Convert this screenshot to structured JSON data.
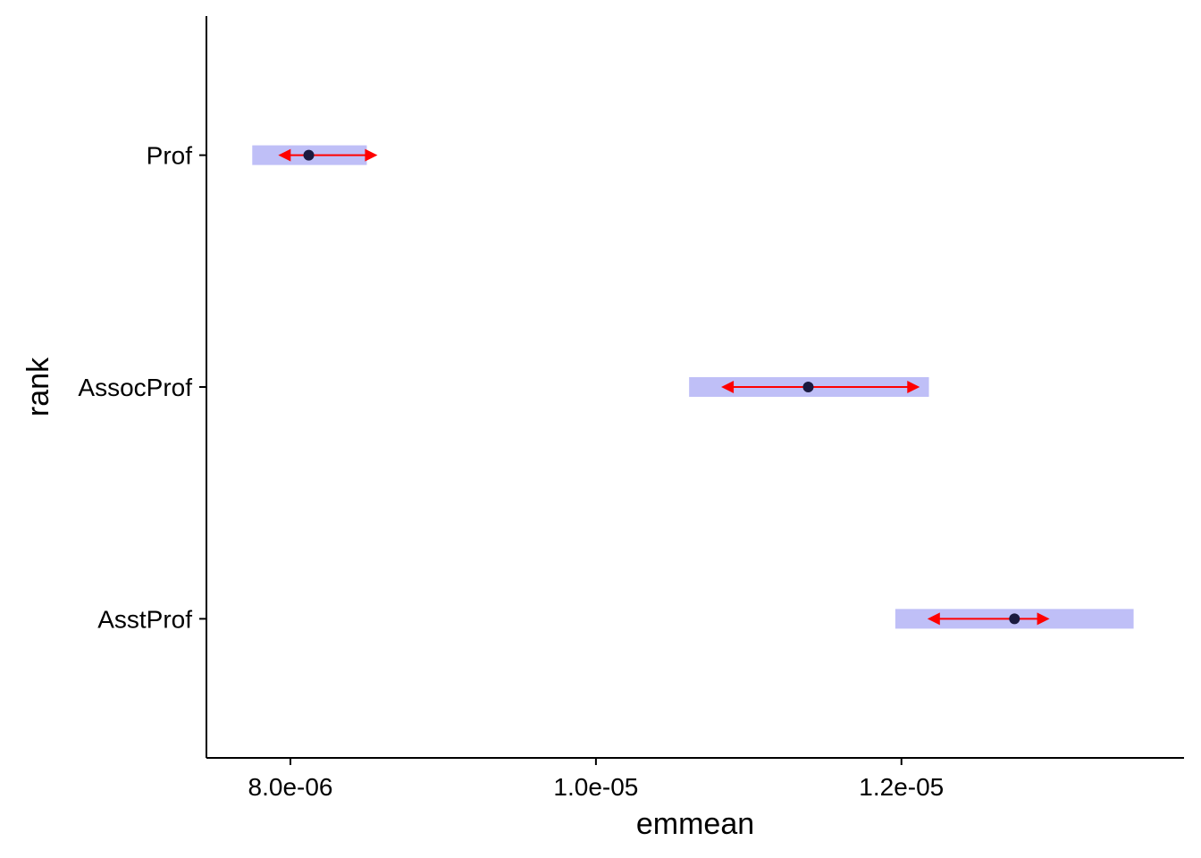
{
  "chart_data": {
    "type": "interval",
    "xlabel": "emmean",
    "ylabel": "rank",
    "xlim": [
      7.45e-06,
      1.385e-05
    ],
    "x_ticks": [
      8e-06,
      1e-05,
      1.2e-05
    ],
    "x_tick_labels": [
      "8.0e-06",
      "1.0e-05",
      "1.2e-05"
    ],
    "categories": [
      "Prof",
      "AssocProf",
      "AsstProf"
    ],
    "estimates": [
      {
        "rank": "Prof",
        "emmean": 8.12e-06,
        "lower_CL": 7.75e-06,
        "upper_CL": 8.5e-06,
        "comparison_low": 7.92e-06,
        "comparison_high": 8.57e-06
      },
      {
        "rank": "AssocProf",
        "emmean": 1.139e-05,
        "lower_CL": 1.061e-05,
        "upper_CL": 1.218e-05,
        "comparison_low": 1.082e-05,
        "comparison_high": 1.212e-05
      },
      {
        "rank": "AsstProf",
        "emmean": 1.274e-05,
        "lower_CL": 1.196e-05,
        "upper_CL": 1.352e-05,
        "comparison_low": 1.217e-05,
        "comparison_high": 1.297e-05
      }
    ],
    "colors": {
      "ci_band": "#bfbff7",
      "comparison_arrow": "#ff0000",
      "point": "#1a1a40",
      "axis": "#000000"
    },
    "grid": false,
    "legend": "none"
  }
}
